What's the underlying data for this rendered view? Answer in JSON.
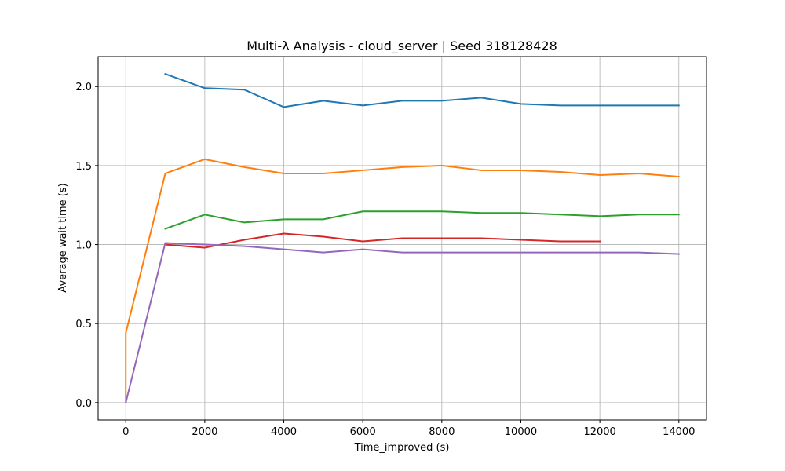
{
  "chart_data": {
    "type": "line",
    "title": "Multi-λ Analysis - cloud_server | Seed 318128428",
    "xlabel": "Time_improved (s)",
    "ylabel": "Average wait time (s)",
    "xlim": [
      -700,
      14700
    ],
    "ylim": [
      -0.11,
      2.19
    ],
    "xticks": [
      0,
      2000,
      4000,
      6000,
      8000,
      10000,
      12000,
      14000
    ],
    "yticks": [
      0.0,
      0.5,
      1.0,
      1.5,
      2.0
    ],
    "xtick_labels": [
      "0",
      "2000",
      "4000",
      "6000",
      "8000",
      "10000",
      "12000",
      "14000"
    ],
    "ytick_labels": [
      "0.0",
      "0.5",
      "1.0",
      "1.5",
      "2.0"
    ],
    "grid": true,
    "series": [
      {
        "name": "series-1",
        "color": "#1f77b4",
        "x": [
          1000,
          2000,
          3000,
          4000,
          5000,
          6000,
          7000,
          8000,
          9000,
          10000,
          11000,
          12000,
          13000,
          14000
        ],
        "y": [
          2.08,
          1.99,
          1.98,
          1.87,
          1.91,
          1.88,
          1.91,
          1.91,
          1.93,
          1.89,
          1.88,
          1.88,
          1.88,
          1.88
        ]
      },
      {
        "name": "series-2",
        "color": "#ff7f0e",
        "x": [
          0,
          0,
          1000,
          2000,
          3000,
          4000,
          5000,
          6000,
          7000,
          8000,
          9000,
          10000,
          11000,
          12000,
          13000,
          14000
        ],
        "y": [
          0.0,
          0.44,
          1.45,
          1.54,
          1.49,
          1.45,
          1.45,
          1.47,
          1.49,
          1.5,
          1.47,
          1.47,
          1.46,
          1.44,
          1.45,
          1.43
        ]
      },
      {
        "name": "series-3",
        "color": "#2ca02c",
        "x": [
          1000,
          2000,
          3000,
          4000,
          5000,
          6000,
          7000,
          8000,
          9000,
          10000,
          11000,
          12000,
          13000,
          14000
        ],
        "y": [
          1.1,
          1.19,
          1.14,
          1.16,
          1.16,
          1.21,
          1.21,
          1.21,
          1.2,
          1.2,
          1.19,
          1.18,
          1.19,
          1.19
        ]
      },
      {
        "name": "series-4",
        "color": "#d62728",
        "x": [
          1000,
          2000,
          3000,
          4000,
          5000,
          6000,
          7000,
          8000,
          9000,
          10000,
          11000,
          12000
        ],
        "y": [
          1.0,
          0.98,
          1.03,
          1.07,
          1.05,
          1.02,
          1.04,
          1.04,
          1.04,
          1.03,
          1.02,
          1.02
        ]
      },
      {
        "name": "series-5",
        "color": "#9467bd",
        "x": [
          0,
          1000,
          2000,
          3000,
          4000,
          5000,
          6000,
          7000,
          8000,
          9000,
          10000,
          11000,
          12000,
          13000,
          14000
        ],
        "y": [
          0.0,
          1.01,
          1.0,
          0.99,
          0.97,
          0.95,
          0.97,
          0.95,
          0.95,
          0.95,
          0.95,
          0.95,
          0.95,
          0.95,
          0.94
        ]
      }
    ]
  }
}
